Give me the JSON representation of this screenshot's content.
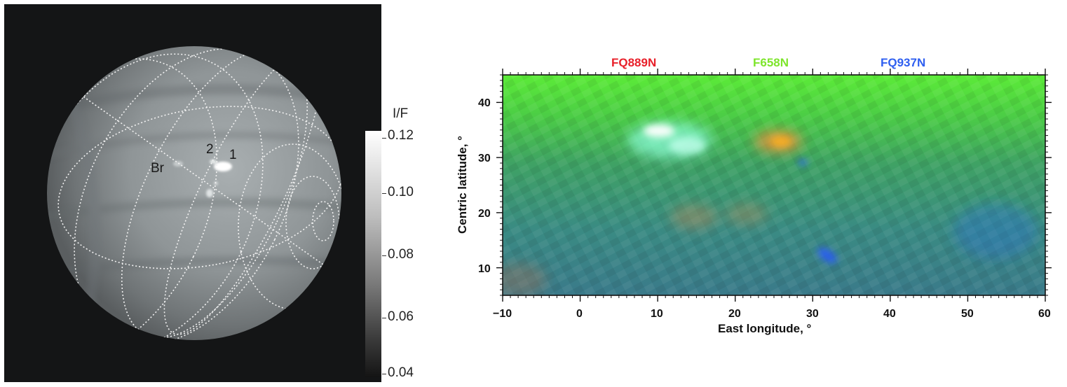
{
  "planet_image": {
    "feature_labels": {
      "br": "Br",
      "two": "2",
      "one": "1"
    },
    "colorbar": {
      "title": "I/F",
      "ticks": [
        "0.12",
        "0.10",
        "0.08",
        "0.06",
        "0.04"
      ],
      "range": [
        0.04,
        0.12
      ]
    }
  },
  "map": {
    "filter_labels": [
      {
        "text": "FQ889N",
        "color": "#e8202a"
      },
      {
        "text": "F658N",
        "color": "#7ee52c"
      },
      {
        "text": "FQ937N",
        "color": "#2f5ff0"
      }
    ],
    "xlabel": "East longitude, °",
    "ylabel": "Centric latitude, °",
    "xticks": [
      "−10",
      "0",
      "10",
      "20",
      "30",
      "40",
      "50",
      "60"
    ],
    "yticks": [
      "10",
      "20",
      "30",
      "40"
    ],
    "xlim": [
      -10,
      60
    ],
    "ylim": [
      5,
      45
    ]
  },
  "colors": {
    "map_top": "#56e63c",
    "map_mid": "#3b9e6a",
    "map_bottom": "#3a7f9a"
  }
}
